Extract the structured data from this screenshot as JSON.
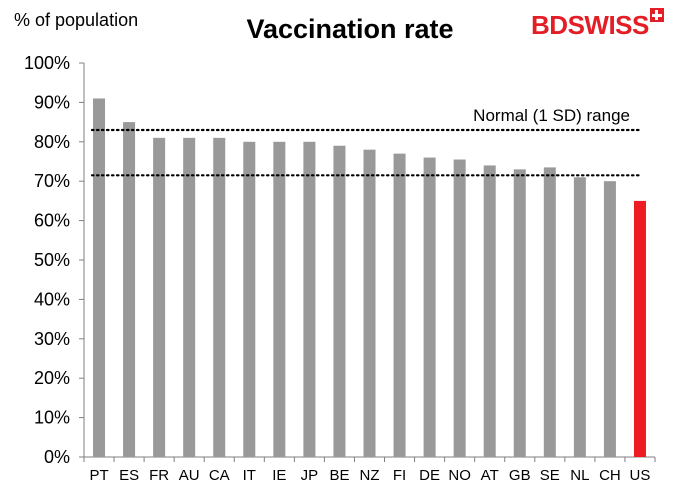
{
  "logo": {
    "part1": "BD",
    "part2": "SWISS"
  },
  "colors": {
    "bar": "#999999",
    "highlight": "#ed1c24",
    "axis": "#7f7f7f"
  },
  "chart_data": {
    "type": "bar",
    "title": "Vaccination rate",
    "ylabel": "% of population",
    "xlabel": "",
    "ylim": [
      0,
      100
    ],
    "yticks": [
      0,
      10,
      20,
      30,
      40,
      50,
      60,
      70,
      80,
      90,
      100
    ],
    "ytick_labels": [
      "0%",
      "10%",
      "20%",
      "30%",
      "40%",
      "50%",
      "60%",
      "70%",
      "80%",
      "90%",
      "100%"
    ],
    "categories": [
      "PT",
      "ES",
      "FR",
      "AU",
      "CA",
      "IT",
      "IE",
      "JP",
      "BE",
      "NZ",
      "FI",
      "DE",
      "NO",
      "AT",
      "GB",
      "SE",
      "NL",
      "CH",
      "US"
    ],
    "values": [
      91,
      85,
      81,
      81,
      81,
      80,
      80,
      80,
      79,
      78,
      77,
      76,
      75.5,
      74,
      73,
      73.5,
      71,
      70,
      65
    ],
    "highlight_category": "US",
    "reference_lines": [
      {
        "value": 83,
        "style": "dotted"
      },
      {
        "value": 71.5,
        "style": "dotted"
      }
    ],
    "annotation": "Normal (1 SD) range",
    "grid": false,
    "legend": "none"
  }
}
